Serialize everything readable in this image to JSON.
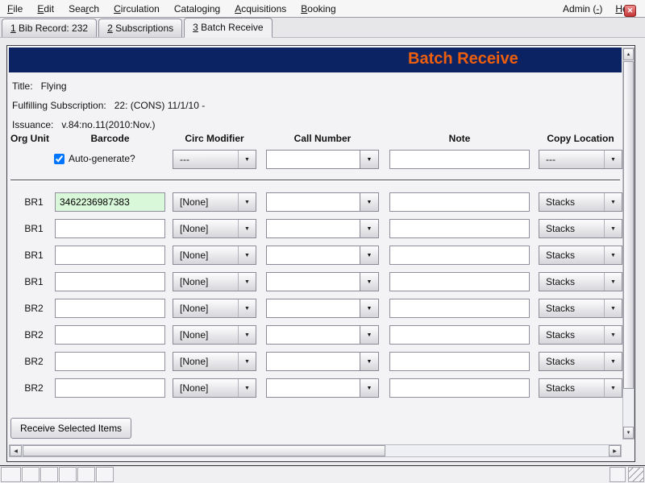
{
  "menu_bar": {
    "items": [
      {
        "pre": "",
        "accel": "F",
        "post": "ile"
      },
      {
        "pre": "",
        "accel": "E",
        "post": "dit"
      },
      {
        "pre": "Sea",
        "accel": "r",
        "post": "ch"
      },
      {
        "pre": "",
        "accel": "C",
        "post": "irculation"
      },
      {
        "pre": "Catalo",
        "accel": "g",
        "post": "ing"
      },
      {
        "pre": "",
        "accel": "A",
        "post": "cquisitions"
      },
      {
        "pre": "",
        "accel": "B",
        "post": "ooking"
      }
    ],
    "admin": {
      "pre": "Admin (",
      "accel": "-",
      "post": ")"
    },
    "help": {
      "pre": "",
      "accel": "H",
      "post": "elp"
    }
  },
  "tabs": [
    {
      "num": "1",
      "label": " Bib Record: 232"
    },
    {
      "num": "2",
      "label": " Subscriptions"
    },
    {
      "num": "3",
      "label": " Batch Receive"
    }
  ],
  "glyphs": {
    "close": "✕",
    "dropdown": "▼",
    "up": "▲",
    "down": "▼",
    "left": "◀",
    "right": "▶"
  },
  "batch_receive": {
    "title": "Batch Receive",
    "info": [
      {
        "label": "Title:",
        "value": "Flying"
      },
      {
        "label": "Fulfilling Subscription:",
        "value": "22: (CONS) 11/1/10 -"
      },
      {
        "label": "Issuance:",
        "value": "v.84:no.11(2010:Nov.)"
      }
    ],
    "columns": [
      "Org Unit",
      "Barcode",
      "Circ Modifier",
      "Call Number",
      "Note",
      "Copy Location"
    ],
    "template_row": {
      "autogen_label": "Auto-generate?",
      "autogen_checked": "checked",
      "circ_modifier": "---",
      "call_number": "",
      "note": "",
      "copy_location": "---"
    },
    "rows": [
      {
        "org_unit": "BR1",
        "barcode": "3462236987383",
        "circ_modifier": "[None]",
        "call_number": "",
        "note": "",
        "copy_location": "Stacks"
      },
      {
        "org_unit": "BR1",
        "barcode": "",
        "circ_modifier": "[None]",
        "call_number": "",
        "note": "",
        "copy_location": "Stacks"
      },
      {
        "org_unit": "BR1",
        "barcode": "",
        "circ_modifier": "[None]",
        "call_number": "",
        "note": "",
        "copy_location": "Stacks"
      },
      {
        "org_unit": "BR1",
        "barcode": "",
        "circ_modifier": "[None]",
        "call_number": "",
        "note": "",
        "copy_location": "Stacks"
      },
      {
        "org_unit": "BR2",
        "barcode": "",
        "circ_modifier": "[None]",
        "call_number": "",
        "note": "",
        "copy_location": "Stacks"
      },
      {
        "org_unit": "BR2",
        "barcode": "",
        "circ_modifier": "[None]",
        "call_number": "",
        "note": "",
        "copy_location": "Stacks"
      },
      {
        "org_unit": "BR2",
        "barcode": "",
        "circ_modifier": "[None]",
        "call_number": "",
        "note": "",
        "copy_location": "Stacks"
      },
      {
        "org_unit": "BR2",
        "barcode": "",
        "circ_modifier": "[None]",
        "call_number": "",
        "note": "",
        "copy_location": "Stacks"
      }
    ],
    "receive_button": "Receive Selected Items"
  },
  "colors": {
    "header_bg": "#0c2363",
    "title_orange": "#ee5f0d",
    "barcode_filled_bg": "#d9f7d9"
  }
}
